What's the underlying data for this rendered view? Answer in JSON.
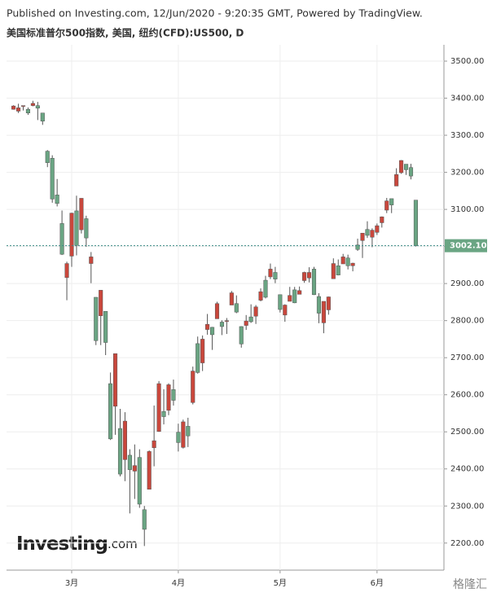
{
  "header": "Published on Investing.com, 12/Jun/2020 - 9:20:35 GMT, Powered by TradingView.",
  "chart_data": {
    "type": "candlestick",
    "title": "美国标准普尔500指数, 美国, 纽约(CFD):US500, D",
    "categories": [
      null,
      null,
      null,
      null,
      null,
      null,
      null,
      null,
      null,
      null,
      null,
      null,
      "3月",
      null,
      null,
      null,
      null,
      null,
      null,
      null,
      null,
      null,
      null,
      null,
      null,
      null,
      null,
      null,
      null,
      null,
      null,
      null,
      null,
      null,
      "4月",
      null,
      null,
      null,
      null,
      null,
      null,
      null,
      null,
      null,
      null,
      null,
      null,
      null,
      null,
      null,
      null,
      null,
      null,
      null,
      null,
      "5月",
      null,
      null,
      null,
      null,
      null,
      null,
      null,
      null,
      null,
      null,
      null,
      null,
      null,
      null,
      null,
      null,
      null,
      null,
      null,
      "6月",
      null,
      null,
      null,
      null,
      null,
      null,
      null,
      null
    ],
    "open": [
      3370,
      3365,
      3378,
      3370,
      3380,
      3380,
      3360,
      3257,
      3238,
      3139,
      3062,
      2916,
      2974,
      3096,
      3045,
      3075,
      2954,
      2863,
      2813,
      2825,
      2630,
      2569,
      2509,
      2425,
      2437,
      2394,
      2431,
      2290,
      2345,
      2457,
      2501,
      2555,
      2558,
      2614,
      2499,
      2458,
      2515,
      2579,
      2738,
      2686,
      2776,
      2782,
      2805,
      2796,
      2799,
      2842,
      2846,
      2784,
      2787,
      2810,
      2812,
      2855,
      2909,
      2918,
      2930,
      2870,
      2815,
      2852,
      2883,
      2871,
      2908,
      2915,
      2939,
      2865,
      2794,
      2829,
      2913,
      2948,
      2953,
      2969,
      2948,
      3004,
      3016,
      3046,
      3025,
      3038,
      3064,
      3098,
      3129,
      3163,
      3199,
      3222,
      3213,
      3125
    ],
    "high": [
      3381,
      3385,
      3380,
      3375,
      3393,
      3390,
      3360,
      3260,
      3246,
      3182,
      3097,
      2959,
      3091,
      3137,
      3130,
      3083,
      2985,
      2863,
      2882,
      2825,
      2660,
      2711,
      2562,
      2553,
      2453,
      2466,
      2453,
      2300,
      2450,
      2571,
      2637,
      2615,
      2631,
      2641,
      2522,
      2533,
      2538,
      2676,
      2757,
      2760,
      2818,
      2783,
      2851,
      2801,
      2807,
      2880,
      2868,
      2785,
      2815,
      2844,
      2842,
      2887,
      2921,
      2954,
      2945,
      2870,
      2844,
      2891,
      2891,
      2892,
      2932,
      2944,
      2945,
      2874,
      2852,
      2865,
      2968,
      2965,
      2980,
      2978,
      2956,
      3021,
      3036,
      3068,
      3049,
      3062,
      3081,
      3131,
      3129,
      3211,
      3233,
      3222,
      3223,
      3125
    ],
    "low": [
      3369,
      3360,
      3367,
      3355,
      3378,
      3341,
      3328,
      3214,
      3118,
      3108,
      2977,
      2855,
      2945,
      2976,
      3035,
      2999,
      2901,
      2734,
      2734,
      2707,
      2478,
      2492,
      2380,
      2367,
      2280,
      2319,
      2295,
      2192,
      2345,
      2407,
      2500,
      2520,
      2545,
      2571,
      2447,
      2455,
      2459,
      2574,
      2657,
      2664,
      2762,
      2721,
      2805,
      2761,
      2764,
      2842,
      2820,
      2727,
      2775,
      2794,
      2791,
      2852,
      2860,
      2912,
      2901,
      2822,
      2797,
      2852,
      2847,
      2871,
      2902,
      2903,
      2869,
      2793,
      2766,
      2816,
      2913,
      2922,
      2953,
      2938,
      2933,
      2988,
      2969,
      3023,
      2998,
      3031,
      3051,
      3090,
      3090,
      3163,
      3196,
      3193,
      3181,
      3000
    ],
    "close": [
      3379,
      3374,
      3380,
      3360,
      3386,
      3373,
      3338,
      3226,
      3128,
      3116,
      2979,
      2954,
      3090,
      3003,
      3130,
      3023,
      2972,
      2746,
      2882,
      2741,
      2481,
      2711,
      2386,
      2529,
      2398,
      2409,
      2305,
      2237,
      2447,
      2476,
      2630,
      2541,
      2627,
      2585,
      2471,
      2527,
      2489,
      2664,
      2660,
      2750,
      2790,
      2762,
      2846,
      2784,
      2800,
      2875,
      2823,
      2737,
      2799,
      2797,
      2837,
      2878,
      2863,
      2939,
      2912,
      2830,
      2842,
      2868,
      2848,
      2881,
      2930,
      2930,
      2870,
      2820,
      2852,
      2864,
      2954,
      2923,
      2972,
      2948,
      2955,
      2992,
      3036,
      3030,
      3044,
      3056,
      3080,
      3123,
      3112,
      3194,
      3232,
      3207,
      3190,
      3002.1
    ],
    "up_color": "#c9473c",
    "down_color": "#6aa583",
    "ylim": [
      2127,
      3544
    ],
    "yticks": [
      {
        "value": 2200,
        "label": "2200.00"
      },
      {
        "value": 2300,
        "label": "2300.00"
      },
      {
        "value": 2400,
        "label": "2400.00"
      },
      {
        "value": 2500,
        "label": "2500.00"
      },
      {
        "value": 2600,
        "label": "2600.00"
      },
      {
        "value": 2700,
        "label": "2700.00"
      },
      {
        "value": 2800,
        "label": "2800.00"
      },
      {
        "value": 2900,
        "label": "2900.00"
      },
      {
        "value": 3000,
        "label": "3000.00"
      },
      {
        "value": 3100,
        "label": "3100.00"
      },
      {
        "value": 3200,
        "label": "3200.00"
      },
      {
        "value": 3300,
        "label": "3300.00"
      },
      {
        "value": 3400,
        "label": "3400.00"
      },
      {
        "value": 3500,
        "label": "3500.00"
      }
    ],
    "last_price": {
      "value": 3002.1,
      "label": "3002.10"
    },
    "grid": true
  },
  "logo_main": "Investing",
  "logo_suffix": ".com",
  "watermark": "格隆汇"
}
